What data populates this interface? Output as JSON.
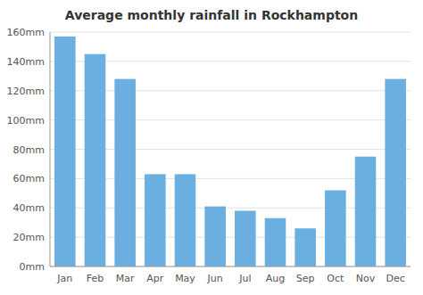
{
  "chart_data": {
    "type": "bar",
    "title": "Average monthly rainfall in Rockhampton",
    "categories": [
      "Jan",
      "Feb",
      "Mar",
      "Apr",
      "May",
      "Jun",
      "Jul",
      "Aug",
      "Sep",
      "Oct",
      "Nov",
      "Dec"
    ],
    "values": [
      157,
      145,
      128,
      63,
      63,
      41,
      38,
      33,
      26,
      52,
      75,
      128
    ],
    "color": "#6aafe0",
    "ylim": [
      0,
      160
    ],
    "yticks": [
      {
        "value": 0,
        "label": "0mm"
      },
      {
        "value": 20,
        "label": "20mm"
      },
      {
        "value": 40,
        "label": "40mm"
      },
      {
        "value": 60,
        "label": "60mm"
      },
      {
        "value": 80,
        "label": "80mm"
      },
      {
        "value": 100,
        "label": "100mm"
      },
      {
        "value": 120,
        "label": "120mm"
      },
      {
        "value": 140,
        "label": "140mm"
      },
      {
        "value": 160,
        "label": "160mm"
      }
    ],
    "grid": true
  }
}
